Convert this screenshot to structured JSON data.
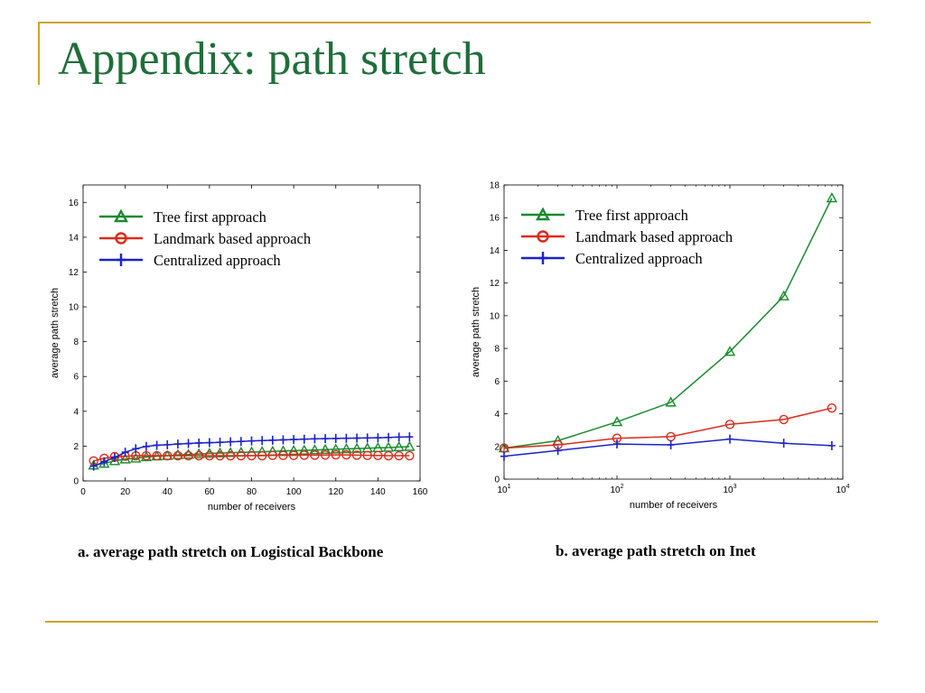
{
  "slide": {
    "title": "Appendix: path stretch",
    "accent_color": "#cca32c",
    "title_color": "#1f6e3a"
  },
  "chart_data": [
    {
      "type": "line",
      "caption": "a. average path stretch on Logistical Backbone",
      "xlabel": "number of receivers",
      "ylabel": "average path stretch",
      "xscale": "linear",
      "xlim": [
        0,
        160
      ],
      "ylim": [
        0,
        17
      ],
      "xticks": [
        0,
        20,
        40,
        60,
        80,
        100,
        120,
        140,
        160
      ],
      "yticks": [
        0,
        2,
        4,
        6,
        8,
        10,
        12,
        14,
        16
      ],
      "legend_position": "top-left",
      "grid": false,
      "series": [
        {
          "name": "Tree first approach",
          "color": "#1a8a2e",
          "marker": "triangle",
          "x": [
            5,
            10,
            15,
            20,
            25,
            30,
            35,
            40,
            45,
            50,
            55,
            60,
            65,
            70,
            75,
            80,
            85,
            90,
            95,
            100,
            105,
            110,
            115,
            120,
            125,
            130,
            135,
            140,
            145,
            150,
            155
          ],
          "y": [
            0.9,
            1.0,
            1.15,
            1.25,
            1.3,
            1.38,
            1.42,
            1.45,
            1.5,
            1.52,
            1.55,
            1.58,
            1.6,
            1.62,
            1.64,
            1.66,
            1.68,
            1.7,
            1.72,
            1.74,
            1.76,
            1.78,
            1.8,
            1.82,
            1.84,
            1.86,
            1.88,
            1.9,
            1.92,
            1.95,
            1.97
          ]
        },
        {
          "name": "Landmark based approach",
          "color": "#dc2a1a",
          "marker": "circle",
          "x": [
            5,
            10,
            15,
            20,
            25,
            30,
            35,
            40,
            45,
            50,
            55,
            60,
            65,
            70,
            75,
            80,
            85,
            90,
            95,
            100,
            105,
            110,
            115,
            120,
            125,
            130,
            135,
            140,
            145,
            150,
            155
          ],
          "y": [
            1.15,
            1.3,
            1.4,
            1.42,
            1.45,
            1.45,
            1.45,
            1.45,
            1.45,
            1.45,
            1.45,
            1.45,
            1.45,
            1.45,
            1.45,
            1.45,
            1.45,
            1.47,
            1.47,
            1.47,
            1.48,
            1.48,
            1.49,
            1.5,
            1.5,
            1.48,
            1.47,
            1.46,
            1.45,
            1.45,
            1.45
          ]
        },
        {
          "name": "Centralized approach",
          "color": "#1c22c8",
          "marker": "plus",
          "x": [
            5,
            10,
            15,
            20,
            25,
            30,
            35,
            40,
            45,
            50,
            55,
            60,
            65,
            70,
            75,
            80,
            85,
            90,
            95,
            100,
            105,
            110,
            115,
            120,
            125,
            130,
            135,
            140,
            145,
            150,
            155
          ],
          "y": [
            0.85,
            1.1,
            1.35,
            1.65,
            1.85,
            1.98,
            2.05,
            2.08,
            2.12,
            2.15,
            2.18,
            2.2,
            2.22,
            2.25,
            2.27,
            2.3,
            2.32,
            2.34,
            2.36,
            2.38,
            2.4,
            2.42,
            2.43,
            2.44,
            2.45,
            2.46,
            2.47,
            2.48,
            2.5,
            2.52,
            2.53
          ]
        }
      ]
    },
    {
      "type": "line",
      "caption": "b. average path stretch on Inet",
      "xlabel": "number of receivers",
      "ylabel": "average path stretch",
      "xscale": "log",
      "xlim": [
        10,
        10000
      ],
      "ylim": [
        0,
        18
      ],
      "xticks": [
        10,
        100,
        1000,
        10000
      ],
      "xtick_labels": [
        {
          "base": "10",
          "exp": "1"
        },
        {
          "base": "10",
          "exp": "2"
        },
        {
          "base": "10",
          "exp": "3"
        },
        {
          "base": "10",
          "exp": "4"
        }
      ],
      "yticks": [
        0,
        2,
        4,
        6,
        8,
        10,
        12,
        14,
        16,
        18
      ],
      "legend_position": "top-left",
      "grid": false,
      "series": [
        {
          "name": "Tree first approach",
          "color": "#1a8a2e",
          "marker": "triangle",
          "x": [
            10,
            30,
            100,
            300,
            1000,
            3000,
            8000
          ],
          "y": [
            1.9,
            2.35,
            3.5,
            4.7,
            7.8,
            11.2,
            17.2
          ]
        },
        {
          "name": "Landmark based approach",
          "color": "#dc2a1a",
          "marker": "circle",
          "x": [
            10,
            30,
            100,
            300,
            1000,
            3000,
            8000
          ],
          "y": [
            1.9,
            2.1,
            2.5,
            2.6,
            3.35,
            3.65,
            4.35
          ]
        },
        {
          "name": "Centralized approach",
          "color": "#1c22c8",
          "marker": "plus",
          "x": [
            10,
            30,
            100,
            300,
            1000,
            3000,
            8000
          ],
          "y": [
            1.4,
            1.75,
            2.15,
            2.1,
            2.45,
            2.2,
            2.05
          ]
        }
      ]
    }
  ]
}
